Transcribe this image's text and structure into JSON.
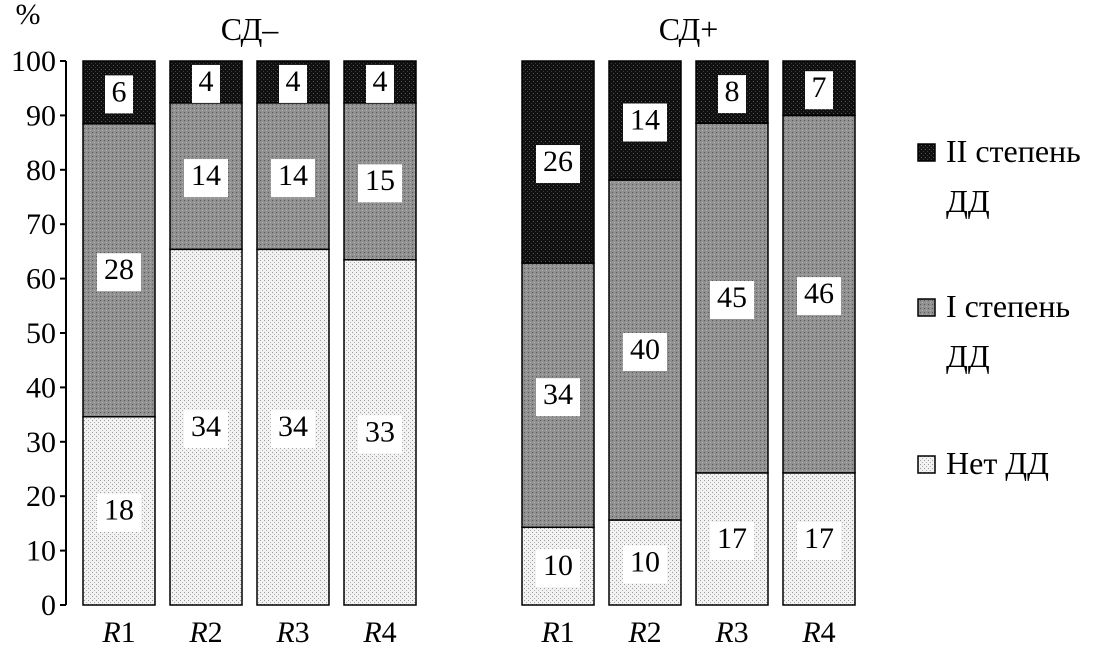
{
  "chart_data": {
    "type": "bar",
    "stacked": true,
    "percent_stacked": true,
    "y_unit": "%",
    "yticks": [
      0,
      10,
      20,
      30,
      40,
      50,
      60,
      70,
      80,
      90,
      100
    ],
    "ylim": [
      0,
      100
    ],
    "legend": [
      {
        "key": "ii",
        "line1": "II степень",
        "line2": "ДД",
        "color": "#111111"
      },
      {
        "key": "i",
        "line1": "I степень",
        "line2": "ДД",
        "color": "#8a8a8a"
      },
      {
        "key": "none",
        "line1": "Нет ДД",
        "line2": "",
        "color": "#ececec"
      }
    ],
    "groups": [
      {
        "title": "СД–",
        "categories": [
          {
            "prefix": "R",
            "num": "1"
          },
          {
            "prefix": "R",
            "num": "2"
          },
          {
            "prefix": "R",
            "num": "3"
          },
          {
            "prefix": "R",
            "num": "4"
          }
        ],
        "series": [
          {
            "key": "none",
            "name": "Нет ДД",
            "values": [
              18,
              34,
              34,
              33
            ]
          },
          {
            "key": "i",
            "name": "I степень ДД",
            "values": [
              28,
              14,
              14,
              15
            ]
          },
          {
            "key": "ii",
            "name": "II степень ДД",
            "values": [
              6,
              4,
              4,
              4
            ]
          }
        ]
      },
      {
        "title": "СД+",
        "categories": [
          {
            "prefix": "R",
            "num": "1"
          },
          {
            "prefix": "R",
            "num": "2"
          },
          {
            "prefix": "R",
            "num": "3"
          },
          {
            "prefix": "R",
            "num": "4"
          }
        ],
        "series": [
          {
            "key": "none",
            "name": "Нет ДД",
            "values": [
              10,
              10,
              17,
              17
            ]
          },
          {
            "key": "i",
            "name": "I степень ДД",
            "values": [
              34,
              40,
              45,
              46
            ]
          },
          {
            "key": "ii",
            "name": "II степень ДД",
            "values": [
              26,
              14,
              8,
              7
            ]
          }
        ]
      }
    ]
  }
}
